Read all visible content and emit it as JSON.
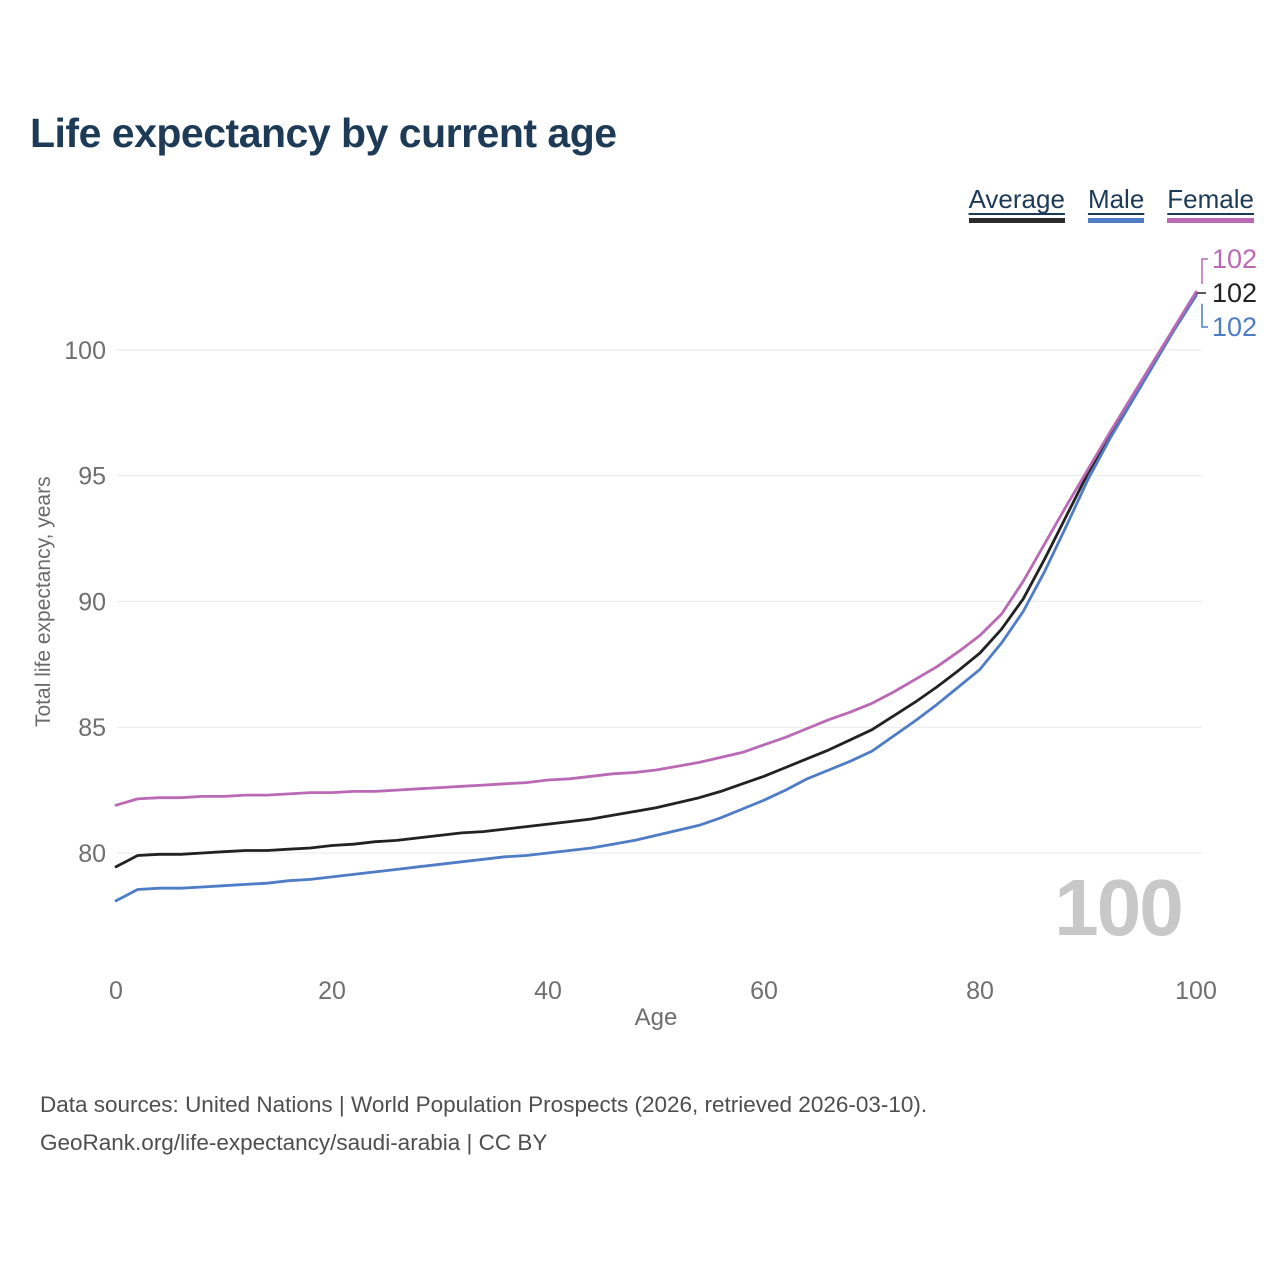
{
  "header": {
    "title": "Life expectancy by current age"
  },
  "legend": [
    {
      "id": "average",
      "label": "Average",
      "color": "#2b2b2b"
    },
    {
      "id": "male",
      "label": "Male",
      "color": "#4e7cc5"
    },
    {
      "id": "female",
      "label": "Female",
      "color": "#ba69b4"
    }
  ],
  "chart_data": {
    "type": "line",
    "title": "Life expectancy by current age",
    "xlabel": "Age",
    "ylabel": "Total life expectancy, years",
    "x_ticks": [
      0,
      20,
      40,
      60,
      80,
      100
    ],
    "y_ticks": [
      80,
      85,
      90,
      95,
      100
    ],
    "xlim": [
      0,
      100
    ],
    "ylim_visible": [
      77.5,
      102.5
    ],
    "grid": "horizontal-only",
    "legend_position": "top-right",
    "watermark": "100",
    "x": [
      0,
      2,
      4,
      6,
      8,
      10,
      12,
      14,
      16,
      18,
      20,
      22,
      24,
      26,
      28,
      30,
      32,
      34,
      36,
      38,
      40,
      42,
      44,
      46,
      48,
      50,
      52,
      54,
      56,
      58,
      60,
      62,
      64,
      66,
      68,
      70,
      72,
      74,
      76,
      78,
      80,
      82,
      84,
      86,
      88,
      90,
      92,
      94,
      96,
      98,
      100
    ],
    "series": [
      {
        "name": "Average",
        "color": "#222222",
        "end_label": "102",
        "values": [
          79.45,
          79.9,
          79.95,
          79.95,
          80.0,
          80.05,
          80.1,
          80.1,
          80.15,
          80.2,
          80.3,
          80.35,
          80.45,
          80.5,
          80.6,
          80.7,
          80.8,
          80.85,
          80.95,
          81.05,
          81.15,
          81.25,
          81.35,
          81.5,
          81.65,
          81.8,
          82.0,
          82.2,
          82.45,
          82.75,
          83.05,
          83.4,
          83.75,
          84.1,
          84.5,
          84.9,
          85.45,
          86.0,
          86.6,
          87.25,
          87.95,
          88.9,
          90.1,
          91.7,
          93.4,
          95.1,
          96.6,
          98.0,
          99.45,
          100.85,
          102.2
        ]
      },
      {
        "name": "Male",
        "color": "#4e7cc5",
        "end_label": "102",
        "values": [
          78.1,
          78.55,
          78.6,
          78.6,
          78.65,
          78.7,
          78.75,
          78.8,
          78.9,
          78.95,
          79.05,
          79.15,
          79.25,
          79.35,
          79.45,
          79.55,
          79.65,
          79.75,
          79.85,
          79.9,
          80.0,
          80.1,
          80.2,
          80.35,
          80.5,
          80.7,
          80.9,
          81.1,
          81.4,
          81.75,
          82.1,
          82.5,
          82.95,
          83.3,
          83.65,
          84.05,
          84.65,
          85.25,
          85.9,
          86.6,
          87.3,
          88.35,
          89.6,
          91.2,
          93.0,
          94.85,
          96.45,
          97.9,
          99.35,
          100.8,
          102.15
        ]
      },
      {
        "name": "Female",
        "color": "#ba69b4",
        "end_label": "102",
        "values": [
          81.9,
          82.15,
          82.2,
          82.2,
          82.25,
          82.25,
          82.3,
          82.3,
          82.35,
          82.4,
          82.4,
          82.45,
          82.45,
          82.5,
          82.55,
          82.6,
          82.65,
          82.7,
          82.75,
          82.8,
          82.9,
          82.95,
          83.05,
          83.15,
          83.2,
          83.3,
          83.45,
          83.6,
          83.8,
          84.0,
          84.3,
          84.6,
          84.95,
          85.3,
          85.6,
          85.95,
          86.4,
          86.9,
          87.4,
          88.0,
          88.65,
          89.5,
          90.8,
          92.3,
          93.8,
          95.25,
          96.7,
          98.1,
          99.5,
          100.9,
          102.3
        ]
      }
    ]
  },
  "footer": {
    "line1": "Data sources: United Nations | World Population Prospects (2026, retrieved 2026-03-10).",
    "line2": "GeoRank.org/life-expectancy/saudi-arabia | CC BY"
  }
}
